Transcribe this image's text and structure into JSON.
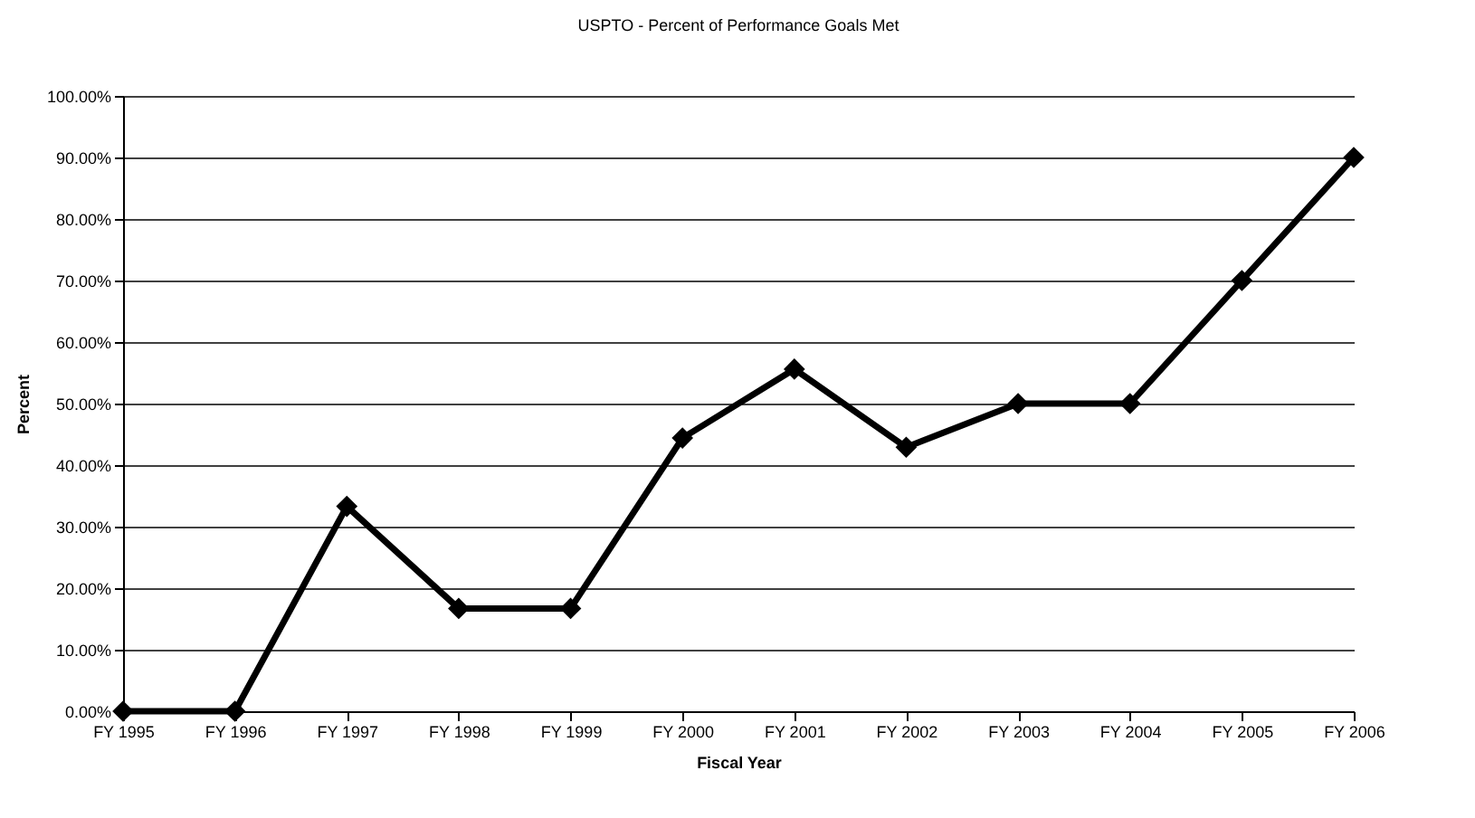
{
  "chart_data": {
    "type": "line",
    "title": "USPTO - Percent of Performance Goals Met",
    "xlabel": "Fiscal Year",
    "ylabel": "Percent",
    "categories": [
      "FY 1995",
      "FY 1996",
      "FY 1997",
      "FY 1998",
      "FY 1999",
      "FY 2000",
      "FY 2001",
      "FY 2002",
      "FY 2003",
      "FY 2004",
      "FY 2005",
      "FY 2006"
    ],
    "series": [
      {
        "color": "#000000",
        "values": [
          0,
          0,
          33.3,
          16.7,
          16.7,
          44.4,
          55.6,
          42.9,
          50,
          50,
          70,
          90
        ]
      }
    ],
    "ylim": [
      0,
      100
    ],
    "yticks": [
      {
        "value": 0,
        "label": "0.00%"
      },
      {
        "value": 10,
        "label": "10.00%"
      },
      {
        "value": 20,
        "label": "20.00%"
      },
      {
        "value": 30,
        "label": "30.00%"
      },
      {
        "value": 40,
        "label": "40.00%"
      },
      {
        "value": 50,
        "label": "50.00%"
      },
      {
        "value": 60,
        "label": "60.00%"
      },
      {
        "value": 70,
        "label": "70.00%"
      },
      {
        "value": 80,
        "label": "80.00%"
      },
      {
        "value": 90,
        "label": "90.00%"
      },
      {
        "value": 100,
        "label": "100.00%"
      }
    ],
    "grid": "y",
    "marker": "diamond",
    "line_style": "solid",
    "legend": false
  }
}
